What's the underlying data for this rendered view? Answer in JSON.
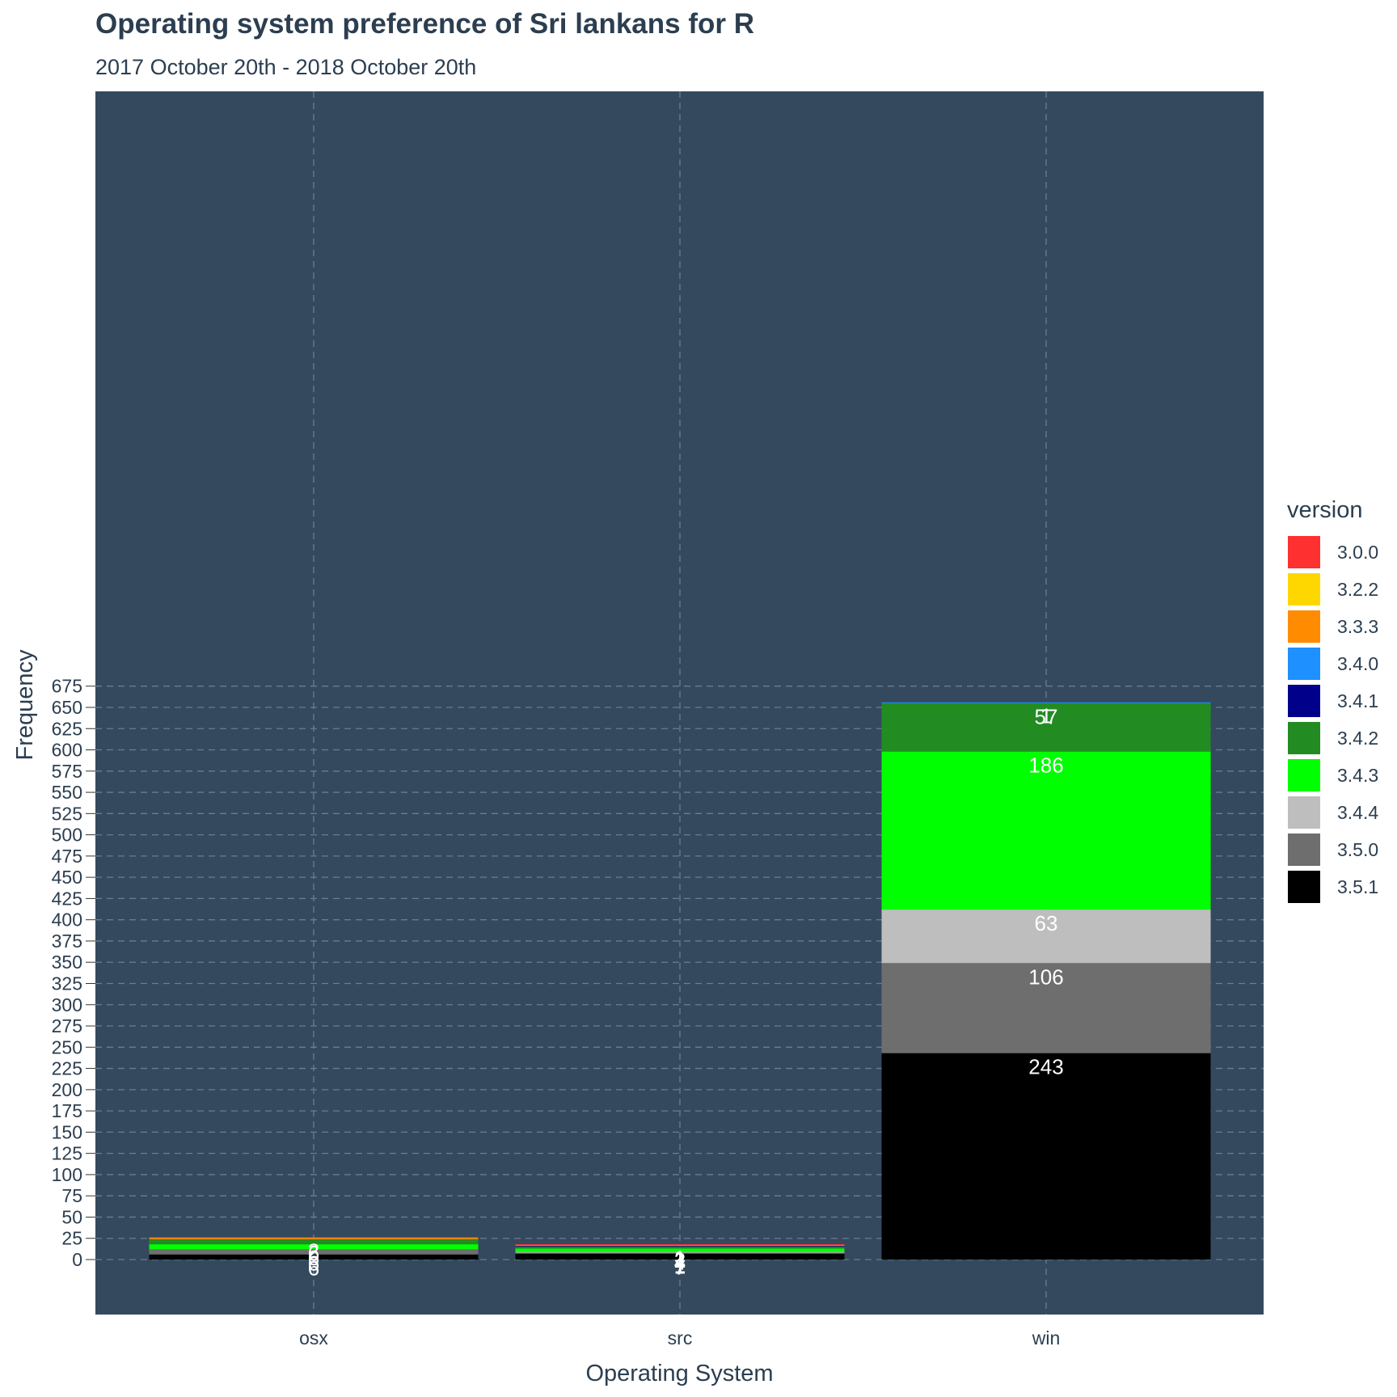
{
  "chart_data": {
    "type": "bar",
    "stacked": true,
    "title": "Operating system preference of Sri lankans for R",
    "subtitle": "2017 October 20th - 2018 October 20th",
    "xlabel": "Operating System",
    "ylabel": "Frequency",
    "categories": [
      "osx",
      "src",
      "win"
    ],
    "ylim": [
      0,
      675
    ],
    "yticks": [
      0,
      25,
      50,
      75,
      100,
      125,
      150,
      175,
      200,
      225,
      250,
      275,
      300,
      325,
      350,
      375,
      400,
      425,
      450,
      475,
      500,
      525,
      550,
      575,
      600,
      625,
      650,
      675
    ],
    "grid": true,
    "legend_title": "version",
    "legend_position": "right",
    "series": [
      {
        "name": "3.0.0",
        "color": "#ff3030",
        "values": [
          0,
          1,
          0
        ]
      },
      {
        "name": "3.2.2",
        "color": "#ffd700",
        "values": [
          0,
          0,
          0
        ]
      },
      {
        "name": "3.3.3",
        "color": "#ff8c00",
        "values": [
          2,
          1,
          0
        ]
      },
      {
        "name": "3.4.0",
        "color": "#1e90ff",
        "values": [
          0,
          0,
          1
        ]
      },
      {
        "name": "3.4.1",
        "color": "#00008b",
        "values": [
          0,
          1,
          0
        ]
      },
      {
        "name": "3.4.2",
        "color": "#228b22",
        "values": [
          6,
          2,
          57
        ]
      },
      {
        "name": "3.4.3",
        "color": "#00ff00",
        "values": [
          6,
          4,
          186
        ]
      },
      {
        "name": "3.4.4",
        "color": "#bebebe",
        "values": [
          0,
          1,
          63
        ]
      },
      {
        "name": "3.5.0",
        "color": "#6e6e6e",
        "values": [
          6,
          1,
          106
        ]
      },
      {
        "name": "3.5.1",
        "color": "#000000",
        "values": [
          6,
          7,
          243
        ]
      }
    ],
    "data_labels": [
      {
        "category": "osx",
        "series": "3.3.3",
        "text": "2"
      },
      {
        "category": "osx",
        "series": "3.4.2",
        "text": "6"
      },
      {
        "category": "osx",
        "series": "3.4.3",
        "text": "6"
      },
      {
        "category": "osx",
        "series": "3.5.0",
        "text": "6"
      },
      {
        "category": "osx",
        "series": "3.5.1",
        "text": "6"
      },
      {
        "category": "src",
        "series": "3.0.0",
        "text": "1"
      },
      {
        "category": "src",
        "series": "3.3.3",
        "text": "1"
      },
      {
        "category": "src",
        "series": "3.4.1",
        "text": "1"
      },
      {
        "category": "src",
        "series": "3.4.2",
        "text": "2"
      },
      {
        "category": "src",
        "series": "3.4.3",
        "text": "4"
      },
      {
        "category": "src",
        "series": "3.4.4",
        "text": "1"
      },
      {
        "category": "src",
        "series": "3.5.0",
        "text": "1"
      },
      {
        "category": "src",
        "series": "3.5.1",
        "text": "7"
      },
      {
        "category": "win",
        "series": "3.4.0",
        "text": "1"
      },
      {
        "category": "win",
        "series": "3.4.2",
        "text": "57"
      },
      {
        "category": "win",
        "series": "3.4.3",
        "text": "186"
      },
      {
        "category": "win",
        "series": "3.4.4",
        "text": "63"
      },
      {
        "category": "win",
        "series": "3.5.0",
        "text": "106"
      },
      {
        "category": "win",
        "series": "3.5.1",
        "text": "243"
      }
    ]
  },
  "colors": {
    "panel_background": "#34495e",
    "text": "#2c3e50",
    "grid": "#6b7d8f",
    "data_label": "#ffffff"
  }
}
